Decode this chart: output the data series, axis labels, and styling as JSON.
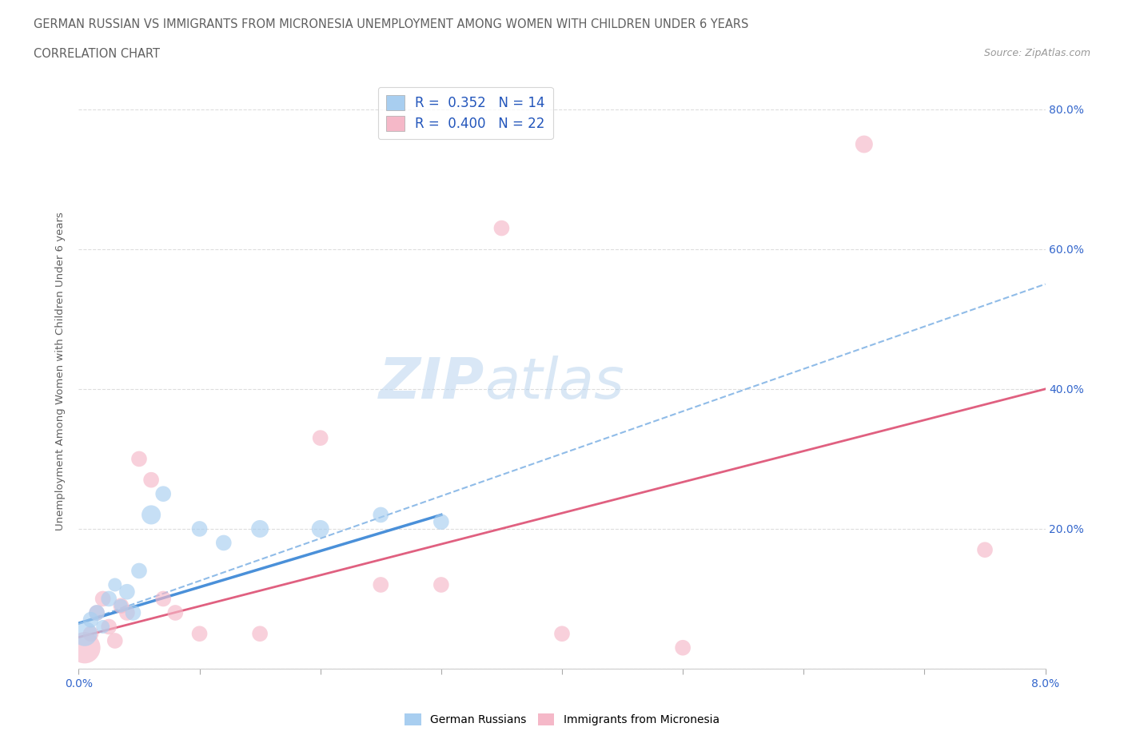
{
  "title_line1": "GERMAN RUSSIAN VS IMMIGRANTS FROM MICRONESIA UNEMPLOYMENT AMONG WOMEN WITH CHILDREN UNDER 6 YEARS",
  "title_line2": "CORRELATION CHART",
  "source": "Source: ZipAtlas.com",
  "ylabel": "Unemployment Among Women with Children Under 6 years",
  "xmin": 0.0,
  "xmax": 8.0,
  "ymin": 0.0,
  "ymax": 85.0,
  "watermark_line1": "ZIP",
  "watermark_line2": "atlas",
  "color_blue": "#a8cef0",
  "color_pink": "#f5b8c8",
  "line_blue": "#4a90d9",
  "line_pink": "#e06080",
  "line_dashed_color": "#90bce8",
  "german_russian_x": [
    0.05,
    0.1,
    0.15,
    0.2,
    0.25,
    0.3,
    0.35,
    0.4,
    0.45,
    0.5,
    0.6,
    0.7,
    1.0,
    1.2,
    1.5,
    2.0,
    2.5,
    3.0
  ],
  "german_russian_y": [
    5.0,
    7.0,
    8.0,
    6.0,
    10.0,
    12.0,
    9.0,
    11.0,
    8.0,
    14.0,
    22.0,
    25.0,
    20.0,
    18.0,
    20.0,
    20.0,
    22.0,
    21.0
  ],
  "german_russian_sizes": [
    500,
    200,
    200,
    150,
    200,
    150,
    150,
    200,
    200,
    200,
    300,
    200,
    200,
    200,
    250,
    250,
    200,
    200
  ],
  "micronesia_x": [
    0.05,
    0.1,
    0.15,
    0.2,
    0.25,
    0.3,
    0.35,
    0.4,
    0.5,
    0.6,
    0.7,
    0.8,
    1.0,
    1.5,
    2.0,
    2.5,
    3.0,
    3.5,
    4.0,
    5.0,
    6.5,
    7.5
  ],
  "micronesia_y": [
    3.0,
    5.0,
    8.0,
    10.0,
    6.0,
    4.0,
    9.0,
    8.0,
    30.0,
    27.0,
    10.0,
    8.0,
    5.0,
    5.0,
    33.0,
    12.0,
    12.0,
    63.0,
    5.0,
    3.0,
    75.0,
    17.0
  ],
  "micronesia_sizes": [
    800,
    200,
    200,
    200,
    200,
    200,
    200,
    200,
    200,
    200,
    200,
    200,
    200,
    200,
    200,
    200,
    200,
    200,
    200,
    200,
    250,
    200
  ],
  "blue_line_x": [
    0.0,
    3.0
  ],
  "blue_line_y": [
    6.5,
    22.0
  ],
  "pink_line_x": [
    0.0,
    8.0
  ],
  "pink_line_y": [
    4.5,
    40.0
  ],
  "dashed_line_x": [
    0.0,
    8.0
  ],
  "dashed_line_y": [
    6.5,
    55.0
  ]
}
